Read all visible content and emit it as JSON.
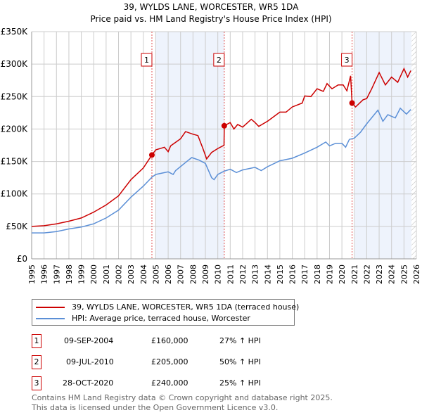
{
  "chart_data": {
    "type": "line",
    "title": "39, WYLDS LANE, WORCESTER, WR5 1DA",
    "subtitle": "Price paid vs. HM Land Registry's House Price Index (HPI)",
    "xlim": [
      1995,
      2026
    ],
    "ylim": [
      0,
      350000
    ],
    "x_ticks": [
      "1995",
      "1996",
      "1997",
      "1998",
      "1999",
      "2000",
      "2001",
      "2002",
      "2003",
      "2004",
      "2005",
      "2006",
      "2007",
      "2008",
      "2009",
      "2010",
      "2011",
      "2012",
      "2013",
      "2014",
      "2015",
      "2016",
      "2017",
      "2018",
      "2019",
      "2020",
      "2021",
      "2022",
      "2023",
      "2024",
      "2025",
      "2026"
    ],
    "y_ticks": [
      {
        "v": 0,
        "label": "£0"
      },
      {
        "v": 50000,
        "label": "£50K"
      },
      {
        "v": 100000,
        "label": "£100K"
      },
      {
        "v": 150000,
        "label": "£150K"
      },
      {
        "v": 200000,
        "label": "£200K"
      },
      {
        "v": 250000,
        "label": "£250K"
      },
      {
        "v": 300000,
        "label": "£300K"
      },
      {
        "v": 350000,
        "label": "£350K"
      }
    ],
    "grid": true,
    "shaded_ranges": [
      [
        2005.0,
        2010.52
      ],
      [
        2021.05,
        2025.6
      ]
    ],
    "hatched_from": 2025.6,
    "series": [
      {
        "name": "39, WYLDS LANE, WORCESTER, WR5 1DA (terraced house)",
        "color": "#cc0000",
        "x": [
          1995,
          1996,
          1997,
          1998,
          1999,
          2000,
          2001,
          2002,
          2003,
          2004,
          2004.69,
          2005,
          2005.7,
          2006,
          2006.2,
          2007,
          2007.4,
          2008,
          2008.4,
          2008.8,
          2009.1,
          2009.5,
          2010,
          2010.5,
          2010.52,
          2011,
          2011.3,
          2011.6,
          2012,
          2012.7,
          2013,
          2013.3,
          2014,
          2015,
          2015.5,
          2016,
          2016.8,
          2017,
          2017.5,
          2018,
          2018.5,
          2018.8,
          2019.2,
          2019.7,
          2020.1,
          2020.4,
          2020.7,
          2020.82,
          2021.1,
          2021.7,
          2022,
          2022.4,
          2023,
          2023.5,
          2024,
          2024.5,
          2025,
          2025.3,
          2025.55
        ],
        "y": [
          50000,
          51000,
          54000,
          58000,
          63000,
          72000,
          83000,
          97000,
          122000,
          140000,
          160000,
          168000,
          172000,
          165000,
          174000,
          185000,
          196000,
          192000,
          190000,
          170000,
          154000,
          164000,
          170000,
          175000,
          205000,
          210000,
          200000,
          207000,
          203000,
          215000,
          210000,
          204000,
          212000,
          226000,
          226000,
          234000,
          240000,
          251000,
          250000,
          262000,
          258000,
          270000,
          262000,
          268000,
          268000,
          259000,
          282000,
          240000,
          234000,
          245000,
          247000,
          262000,
          287000,
          268000,
          280000,
          272000,
          293000,
          280000,
          290000
        ]
      },
      {
        "name": "HPI: Average price, terraced house, Worcester",
        "color": "#5b8fd6",
        "x": [
          1995,
          1996,
          1997,
          1998,
          1999,
          2000,
          2001,
          2002,
          2003,
          2004,
          2004.7,
          2005,
          2006,
          2006.4,
          2006.6,
          2007.5,
          2007.9,
          2008.5,
          2009,
          2009.5,
          2009.7,
          2010,
          2010.5,
          2011,
          2011.5,
          2012,
          2013,
          2013.5,
          2014,
          2015,
          2016,
          2017,
          2018,
          2018.7,
          2019,
          2019.5,
          2020,
          2020.3,
          2020.6,
          2021,
          2021.5,
          2022,
          2022.9,
          2023.3,
          2023.7,
          2024.3,
          2024.7,
          2025.2,
          2025.55
        ],
        "y": [
          40000,
          40000,
          42000,
          46000,
          49000,
          54000,
          63000,
          75000,
          95000,
          112000,
          126000,
          130000,
          134000,
          130000,
          136000,
          150000,
          156000,
          152000,
          147000,
          125000,
          122000,
          130000,
          135000,
          138000,
          133000,
          137000,
          141000,
          136000,
          142000,
          151000,
          155000,
          163000,
          172000,
          180000,
          174000,
          178000,
          178000,
          172000,
          184000,
          186000,
          195000,
          208000,
          229000,
          212000,
          222000,
          217000,
          232000,
          223000,
          230000
        ]
      }
    ],
    "sales": [
      {
        "n": "1",
        "x": 2004.69,
        "y": 160000,
        "date": "09-SEP-2004",
        "price": "£160,000",
        "hpi": "27% ↑ HPI"
      },
      {
        "n": "2",
        "x": 2010.52,
        "y": 205000,
        "date": "09-JUL-2010",
        "price": "£205,000",
        "hpi": "50% ↑ HPI"
      },
      {
        "n": "3",
        "x": 2020.82,
        "y": 240000,
        "date": "28-OCT-2020",
        "price": "£240,000",
        "hpi": "25% ↑ HPI"
      }
    ]
  },
  "footer": {
    "line1": "Contains HM Land Registry data © Crown copyright and database right 2025.",
    "line2": "This data is licensed under the Open Government Licence v3.0."
  }
}
